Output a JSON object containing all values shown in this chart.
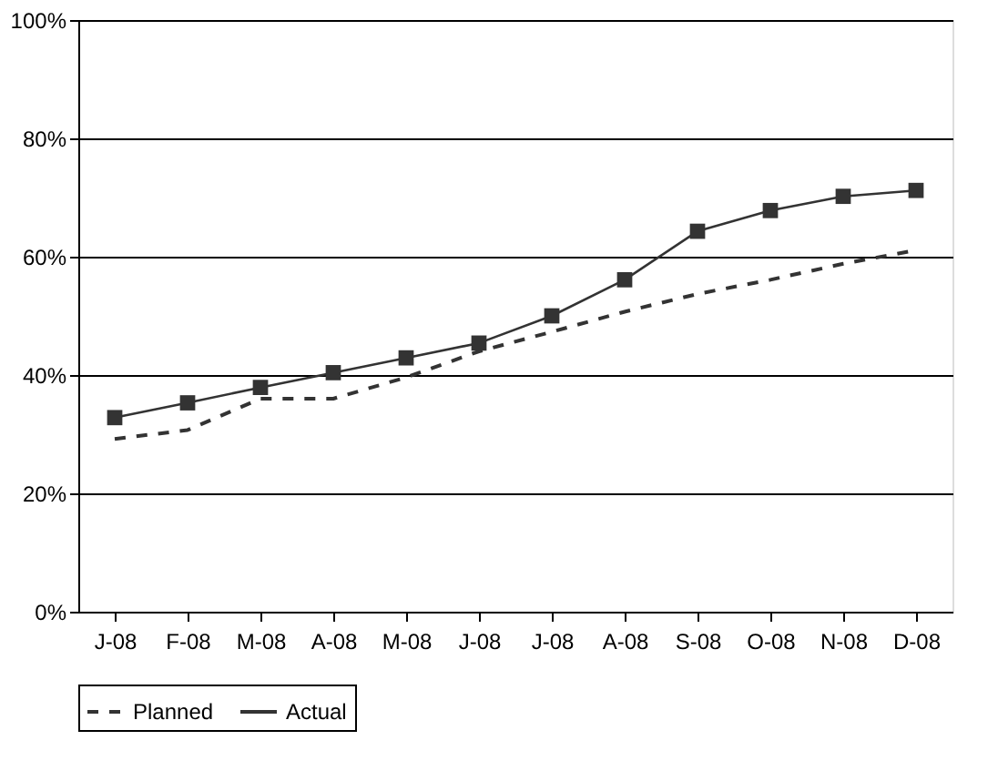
{
  "chart_data": {
    "type": "line",
    "categories": [
      "J-08",
      "F-08",
      "M-08",
      "A-08",
      "M-08",
      "J-08",
      "J-08",
      "A-08",
      "S-08",
      "O-08",
      "N-08",
      "D-08"
    ],
    "series": [
      {
        "name": "Planned",
        "color": "#333333",
        "line_style": "dashed",
        "marker": "none",
        "values": [
          29.2,
          30.7,
          36.0,
          36.0,
          39.6,
          44.0,
          47.3,
          50.7,
          53.7,
          56.1,
          58.8,
          61.1
        ]
      },
      {
        "name": "Actual",
        "color": "#333333",
        "line_style": "solid",
        "marker": "square",
        "values": [
          32.8,
          35.3,
          37.9,
          40.4,
          42.9,
          45.4,
          50.0,
          56.1,
          64.3,
          67.8,
          70.2,
          71.2
        ]
      }
    ],
    "ylim": [
      0,
      100
    ],
    "yticks": [
      {
        "value": 0,
        "label": "0%"
      },
      {
        "value": 20,
        "label": "20%"
      },
      {
        "value": 40,
        "label": "40%"
      },
      {
        "value": 60,
        "label": "60%"
      },
      {
        "value": 80,
        "label": "80%"
      },
      {
        "value": 100,
        "label": "100%"
      }
    ],
    "grid": "y",
    "legend": "bottom"
  }
}
